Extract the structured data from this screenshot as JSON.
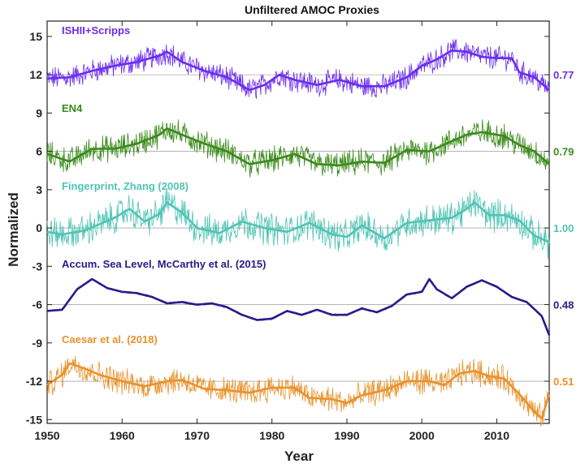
{
  "chart_data": {
    "type": "line",
    "title": "Unfiltered AMOC Proxies",
    "xlabel": "Year",
    "ylabel": "Normalized",
    "xlim": [
      1950,
      2017
    ],
    "ylim": [
      -15,
      16
    ],
    "x_ticks": [
      1950,
      1960,
      1970,
      1980,
      1990,
      2000,
      2010
    ],
    "y_ticks": [
      15,
      12,
      9,
      6,
      3,
      0,
      -3,
      -6,
      -9,
      -12,
      -15
    ],
    "grid": "baseline per series",
    "legend": "inline labels",
    "series": [
      {
        "name": "ISHII+Scripps",
        "color": "#6a2cf0",
        "offset": 12,
        "correlation": "0.77",
        "noise": 0.8,
        "x": [
          1950,
          1953,
          1956,
          1959,
          1962,
          1965,
          1966,
          1968,
          1971,
          1974,
          1977,
          1979,
          1981,
          1983,
          1986,
          1989,
          1992,
          1995,
          1998,
          2000,
          2002,
          2004,
          2006,
          2008,
          2010,
          2012,
          2013,
          2015,
          2017
        ],
        "y": [
          11.7,
          11.8,
          12.3,
          12.7,
          13.0,
          13.5,
          13.8,
          13.0,
          12.3,
          11.8,
          10.8,
          11.2,
          12.0,
          11.6,
          11.2,
          11.6,
          11.1,
          11.1,
          11.8,
          12.7,
          13.2,
          13.9,
          13.8,
          13.4,
          13.3,
          13.3,
          12.2,
          11.8,
          10.8
        ]
      },
      {
        "name": "EN4",
        "color": "#3a8a1a",
        "offset": 6,
        "correlation": "0.79",
        "noise": 0.9,
        "x": [
          1950,
          1953,
          1956,
          1959,
          1962,
          1965,
          1966,
          1968,
          1971,
          1974,
          1977,
          1980,
          1983,
          1986,
          1989,
          1992,
          1995,
          1998,
          2001,
          2004,
          2006,
          2008,
          2011,
          2013,
          2015,
          2017
        ],
        "y": [
          5.8,
          5.2,
          6.2,
          6.2,
          6.6,
          7.3,
          7.8,
          7.3,
          6.6,
          6.0,
          5.0,
          5.3,
          5.8,
          5.0,
          4.9,
          5.2,
          5.1,
          6.1,
          6.0,
          6.8,
          7.3,
          7.5,
          7.2,
          6.5,
          6.0,
          5.0
        ]
      },
      {
        "name": "Fingerprint, Zhang (2008)",
        "color": "#4fc4b4",
        "offset": 0,
        "correlation": "1.00",
        "noise": 1.1,
        "x": [
          1950,
          1952,
          1955,
          1957,
          1959,
          1961,
          1963,
          1965,
          1966,
          1968,
          1970,
          1973,
          1976,
          1979,
          1982,
          1985,
          1988,
          1990,
          1992,
          1995,
          1998,
          2001,
          2004,
          2006,
          2007,
          2009,
          2011,
          2013,
          2015,
          2017
        ],
        "y": [
          -0.3,
          -0.5,
          -0.2,
          0.3,
          0.8,
          1.5,
          0.5,
          1.1,
          2.0,
          1.2,
          0.0,
          -0.4,
          0.5,
          0.0,
          -0.3,
          0.4,
          -0.5,
          -0.7,
          0.2,
          -0.8,
          0.4,
          0.6,
          0.8,
          1.5,
          2.0,
          1.0,
          1.0,
          0.6,
          -0.6,
          -1.1
        ]
      },
      {
        "name": "Accum. Sea Level, McCarthy et al. (2015)",
        "color": "#2b1a8c",
        "offset": -6,
        "correlation": "0.48",
        "noise": 0.08,
        "x": [
          1950,
          1952,
          1954,
          1956,
          1958,
          1960,
          1962,
          1964,
          1966,
          1968,
          1970,
          1972,
          1974,
          1976,
          1978,
          1980,
          1982,
          1984,
          1986,
          1988,
          1990,
          1992,
          1994,
          1996,
          1998,
          2000,
          2001,
          2002,
          2004,
          2006,
          2008,
          2010,
          2012,
          2014,
          2016,
          2017
        ],
        "y": [
          -6.5,
          -6.4,
          -4.8,
          -4.0,
          -4.7,
          -5.0,
          -5.1,
          -5.4,
          -5.9,
          -5.8,
          -6.0,
          -5.9,
          -6.2,
          -6.8,
          -7.2,
          -7.1,
          -6.5,
          -6.8,
          -6.4,
          -6.8,
          -6.8,
          -6.3,
          -6.6,
          -6.1,
          -5.2,
          -5.0,
          -4.0,
          -4.8,
          -5.5,
          -4.6,
          -4.1,
          -4.6,
          -5.4,
          -5.8,
          -6.9,
          -8.4
        ]
      },
      {
        "name": "Caesar et al. (2018)",
        "color": "#e8922c",
        "offset": -12,
        "correlation": "0.51",
        "noise": 0.9,
        "x": [
          1950,
          1952,
          1953,
          1955,
          1957,
          1960,
          1963,
          1966,
          1968,
          1971,
          1974,
          1977,
          1980,
          1983,
          1985,
          1988,
          1990,
          1992,
          1995,
          1998,
          2001,
          2003,
          2005,
          2007,
          2009,
          2011,
          2013,
          2015,
          2016,
          2017
        ],
        "y": [
          -12.3,
          -11.5,
          -10.6,
          -11.0,
          -11.5,
          -12.0,
          -12.4,
          -12.0,
          -11.9,
          -12.6,
          -12.7,
          -12.9,
          -12.5,
          -12.5,
          -13.3,
          -13.4,
          -13.7,
          -13.1,
          -12.7,
          -12.0,
          -12.0,
          -12.3,
          -11.4,
          -11.2,
          -11.6,
          -11.8,
          -13.0,
          -14.4,
          -14.9,
          -13.0
        ]
      }
    ]
  }
}
